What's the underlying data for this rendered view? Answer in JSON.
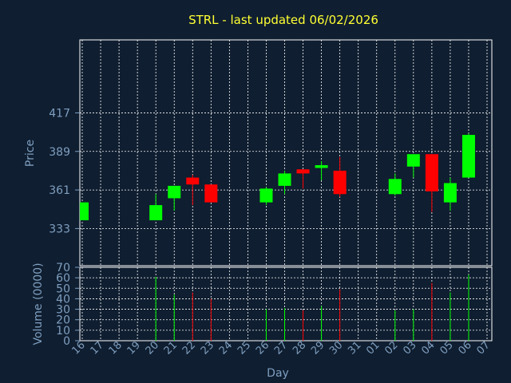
{
  "chart_data": {
    "type": "candlestick",
    "title": "STRL - last updated 06/02/2026",
    "price_panel": {
      "ylabel": "Price",
      "yticks": [
        333,
        361,
        389,
        417
      ],
      "ylim": [
        306,
        470
      ]
    },
    "volume_panel": {
      "ylabel": "Volume (0000)",
      "yticks": [
        0,
        10,
        20,
        30,
        40,
        50,
        60,
        70
      ],
      "ylim": [
        0,
        70
      ]
    },
    "xlabel": "Day",
    "x_labels": [
      "16",
      "17",
      "18",
      "19",
      "20",
      "21",
      "22",
      "23",
      "24",
      "25",
      "26",
      "27",
      "28",
      "29",
      "30",
      "31",
      "01",
      "02",
      "03",
      "04",
      "05",
      "06",
      "07"
    ],
    "colors": {
      "up": "#00ff00",
      "down": "#ff0000",
      "title": "#ffff33",
      "axis": "#7f9fc0",
      "background": "#0f1e30",
      "panel": "#0f1e30",
      "grid": "#ffffff"
    },
    "candles": [
      {
        "x": "16",
        "open": 339,
        "close": 352,
        "high": 352,
        "low": 339,
        "volume": 0
      },
      {
        "x": "20",
        "open": 339,
        "close": 350,
        "high": 358,
        "low": 339,
        "volume": 61
      },
      {
        "x": "21",
        "open": 355,
        "close": 364,
        "high": 364,
        "low": 346,
        "volume": 44
      },
      {
        "x": "22",
        "open": 370,
        "close": 365,
        "high": 372,
        "low": 350,
        "volume": 46
      },
      {
        "x": "23",
        "open": 365,
        "close": 352,
        "high": 365,
        "low": 352,
        "volume": 40
      },
      {
        "x": "26",
        "open": 352,
        "close": 362,
        "high": 363,
        "low": 350,
        "volume": 30
      },
      {
        "x": "27",
        "open": 364,
        "close": 373,
        "high": 375,
        "low": 358,
        "volume": 31
      },
      {
        "x": "28",
        "open": 376,
        "close": 373,
        "high": 376,
        "low": 362,
        "volume": 29
      },
      {
        "x": "29",
        "open": 377,
        "close": 379,
        "high": 382,
        "low": 368,
        "volume": 33
      },
      {
        "x": "30",
        "open": 375,
        "close": 358,
        "high": 385,
        "low": 356,
        "volume": 49
      },
      {
        "x": "02",
        "open": 358,
        "close": 369,
        "high": 373,
        "low": 357,
        "volume": 29
      },
      {
        "x": "03",
        "open": 378,
        "close": 387,
        "high": 387,
        "low": 370,
        "volume": 30
      },
      {
        "x": "04",
        "open": 387,
        "close": 360,
        "high": 387,
        "low": 345,
        "volume": 55
      },
      {
        "x": "05",
        "open": 352,
        "close": 366,
        "high": 370,
        "low": 346,
        "volume": 46
      },
      {
        "x": "06",
        "open": 370,
        "close": 401,
        "high": 402,
        "low": 370,
        "volume": 63
      }
    ]
  }
}
